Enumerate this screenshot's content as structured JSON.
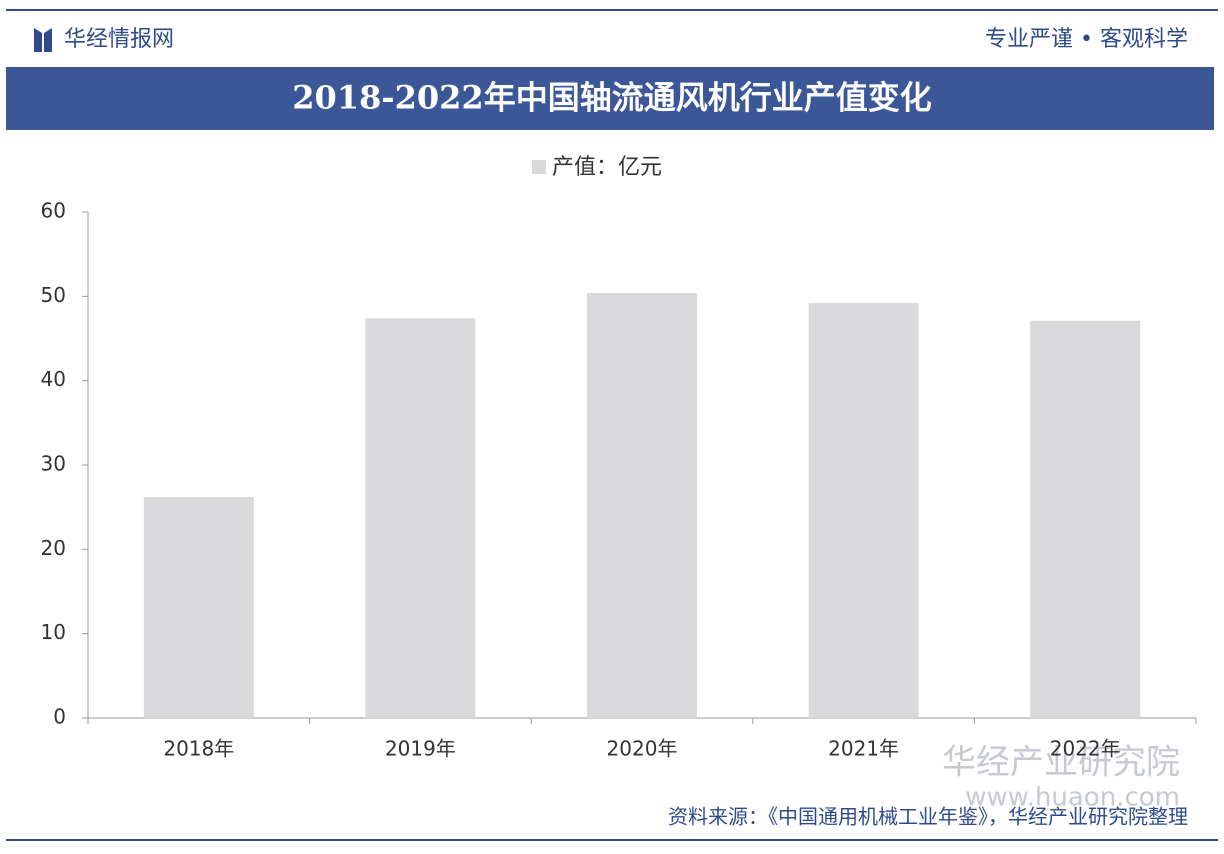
{
  "header": {
    "brand": "华经情报网",
    "slogan": "专业严谨 • 客观科学"
  },
  "chart_data": {
    "type": "bar",
    "title": "2018-2022年中国轴流通风机行业产值变化",
    "categories": [
      "2018年",
      "2019年",
      "2020年",
      "2021年",
      "2022年"
    ],
    "series": [
      {
        "name": "产值：亿元",
        "color": "#d9d9db",
        "values": [
          26.2,
          47.4,
          50.4,
          49.2,
          47.1
        ]
      }
    ],
    "ylim": [
      0,
      60
    ],
    "yticks": [
      0,
      10,
      20,
      30,
      40,
      50,
      60
    ],
    "grid": false
  },
  "source": "资料来源：《中国通用机械工业年鉴》，华经产业研究院整理",
  "watermark": {
    "name": "华经产业研究院",
    "url": "www.huaon.com"
  }
}
